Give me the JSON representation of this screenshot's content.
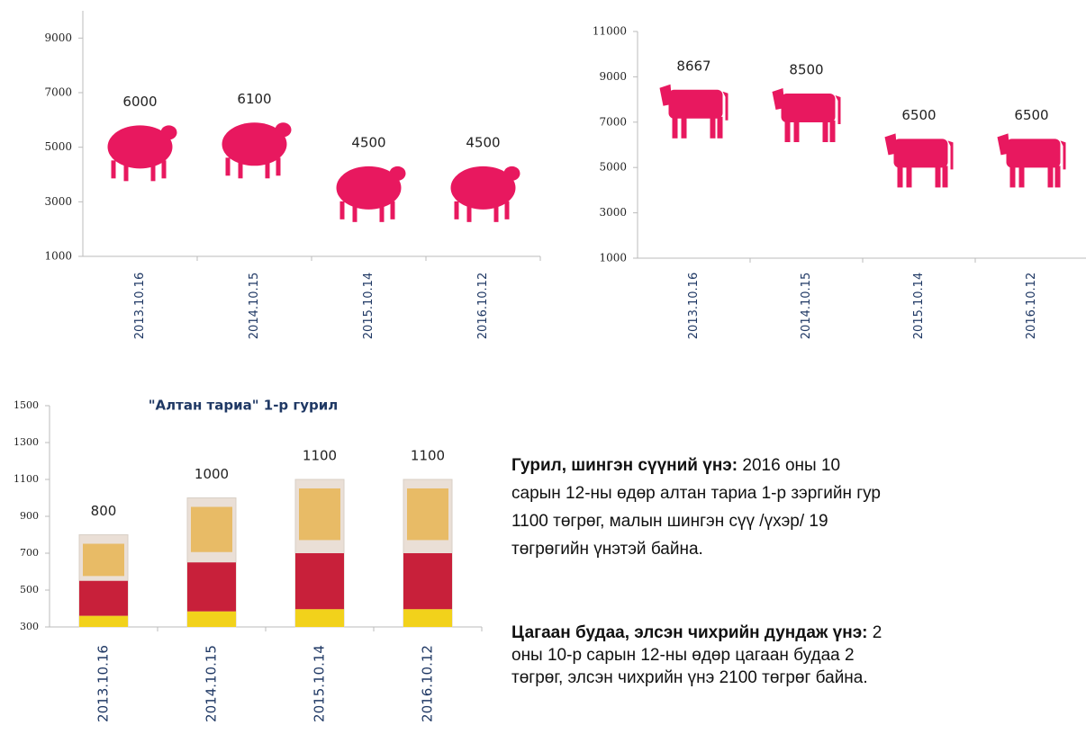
{
  "chart_data": [
    {
      "type": "sheep",
      "categories": [
        "2013.10.16",
        "2014.10.15",
        "2015.10.14",
        "2016.10.12"
      ],
      "values": [
        6000,
        6100,
        4500,
        4500
      ],
      "color": "#e8185f",
      "ylim": [
        1000,
        10000
      ],
      "yticks": [
        1000,
        3000,
        5000,
        7000,
        9000
      ]
    },
    {
      "type": "cow",
      "categories": [
        "2013.10.16",
        "2014.10.15",
        "2015.10.14",
        "2016.10.12"
      ],
      "values": [
        8667,
        8500,
        6500,
        6500
      ],
      "color": "#e8185f",
      "ylim": [
        1000,
        11000
      ],
      "yticks": [
        1000,
        3000,
        5000,
        7000,
        9000,
        11000
      ]
    },
    {
      "type": "bag",
      "title": "\"Алтан тариа\" 1-р гурил",
      "categories": [
        "2013.10.16",
        "2014.10.15",
        "2015.10.14",
        "2016.10.12"
      ],
      "values": [
        800,
        1000,
        1100,
        1100
      ],
      "color": "#c8203a",
      "ylim": [
        300,
        1500
      ],
      "yticks": [
        300,
        500,
        700,
        900,
        1100,
        1300,
        1500
      ]
    }
  ],
  "paragraphs": [
    {
      "heading": "Гурил, шингэн сүүний үнэ:",
      "lines": [
        " 2016 оны 10",
        "сарын 12-ны өдөр алтан тариа 1-р зэргийн гур",
        "1100 төгрөг, малын шингэн сүү /үхэр/ 19",
        "төгрөгийн үнэтэй байна."
      ]
    },
    {
      "heading": "Цагаан будаа, элсэн чихрийн дундаж үнэ:",
      "lines": [
        " 2",
        "оны 10-р сарын 12-ны өдөр цагаан будаа 2",
        "төгрөг, элсэн чихрийн үнэ 2100 төгрөг байна."
      ]
    }
  ]
}
